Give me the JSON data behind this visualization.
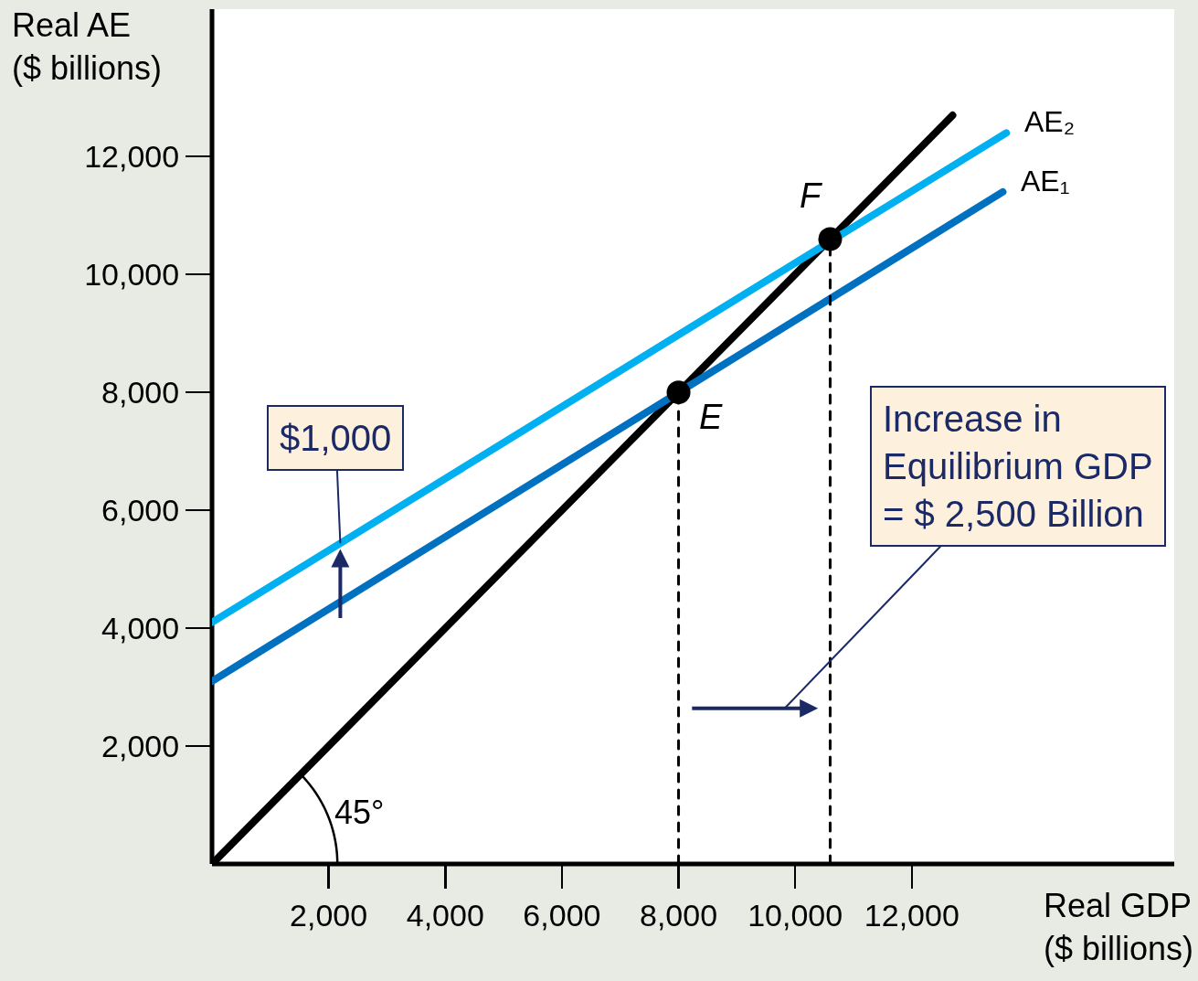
{
  "chart_data": {
    "type": "line",
    "xlabel": "Real GDP\n($ billions)",
    "ylabel": "Real AE\n($ billions)",
    "xlim": [
      0,
      16500
    ],
    "ylim": [
      0,
      14500
    ],
    "xticks": [
      {
        "value": 2000,
        "label": "2,000"
      },
      {
        "value": 4000,
        "label": "4,000"
      },
      {
        "value": 6000,
        "label": "6,000"
      },
      {
        "value": 8000,
        "label": "8,000"
      },
      {
        "value": 10000,
        "label": "10,000"
      },
      {
        "value": 12000,
        "label": "12,000"
      }
    ],
    "yticks": [
      {
        "value": 2000,
        "label": "2,000"
      },
      {
        "value": 4000,
        "label": "4,000"
      },
      {
        "value": 6000,
        "label": "6,000"
      },
      {
        "value": 8000,
        "label": "8,000"
      },
      {
        "value": 10000,
        "label": "10,000"
      },
      {
        "value": 12000,
        "label": "12,000"
      }
    ],
    "series": [
      {
        "type": "line",
        "color": "#000000",
        "x": [
          0,
          12700
        ],
        "values": [
          0,
          12700
        ]
      },
      {
        "type": "line",
        "name": "AE₁",
        "color": "#0070c0",
        "x": [
          0,
          13560
        ],
        "values": [
          3100,
          11400
        ]
      },
      {
        "type": "line",
        "name": "AE₂",
        "color": "#00b0f0",
        "x": [
          0,
          13620
        ],
        "values": [
          4100,
          12400
        ]
      },
      {
        "type": "line",
        "color": "#000000",
        "line_style": "dashed",
        "x": [
          8000,
          8000
        ],
        "values": [
          0,
          8000
        ]
      },
      {
        "type": "line",
        "color": "#000000",
        "line_style": "dashed",
        "x": [
          10600,
          10600
        ],
        "values": [
          0,
          10600
        ]
      },
      {
        "type": "scatter",
        "color": "#000000",
        "marker": "circle",
        "x": [
          8000,
          10600
        ],
        "values": [
          8000,
          10600
        ]
      }
    ],
    "annotations": [
      {
        "text": "$1,000",
        "x": 2200,
        "y": 5440
      },
      "Increase in\nEquilibrium GDP\n= $ 2,500 Billion",
      {
        "text": "E",
        "x": 8000,
        "y": 8000
      },
      {
        "text": "F",
        "x": 10600,
        "y": 10600
      },
      "45°"
    ]
  }
}
